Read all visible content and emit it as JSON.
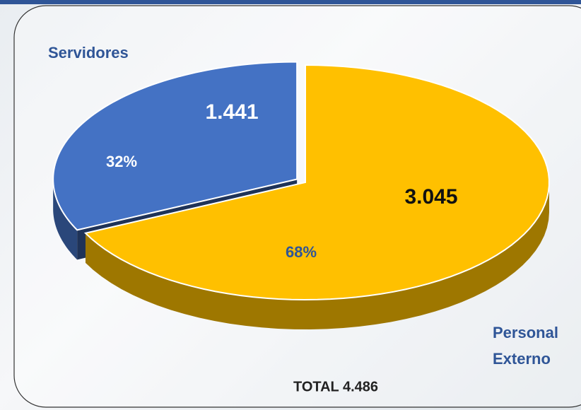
{
  "chart_data": {
    "type": "pie",
    "categories": [
      "Servidores",
      "Personal Externo"
    ],
    "values": [
      1441,
      3045
    ],
    "value_labels": [
      "1.441",
      "3.045"
    ],
    "percentages": [
      32,
      68
    ],
    "percentage_labels": [
      "32%",
      "68%"
    ],
    "colors": [
      "#4472c4",
      "#ffc000"
    ],
    "total_label": "TOTAL 4.486"
  }
}
